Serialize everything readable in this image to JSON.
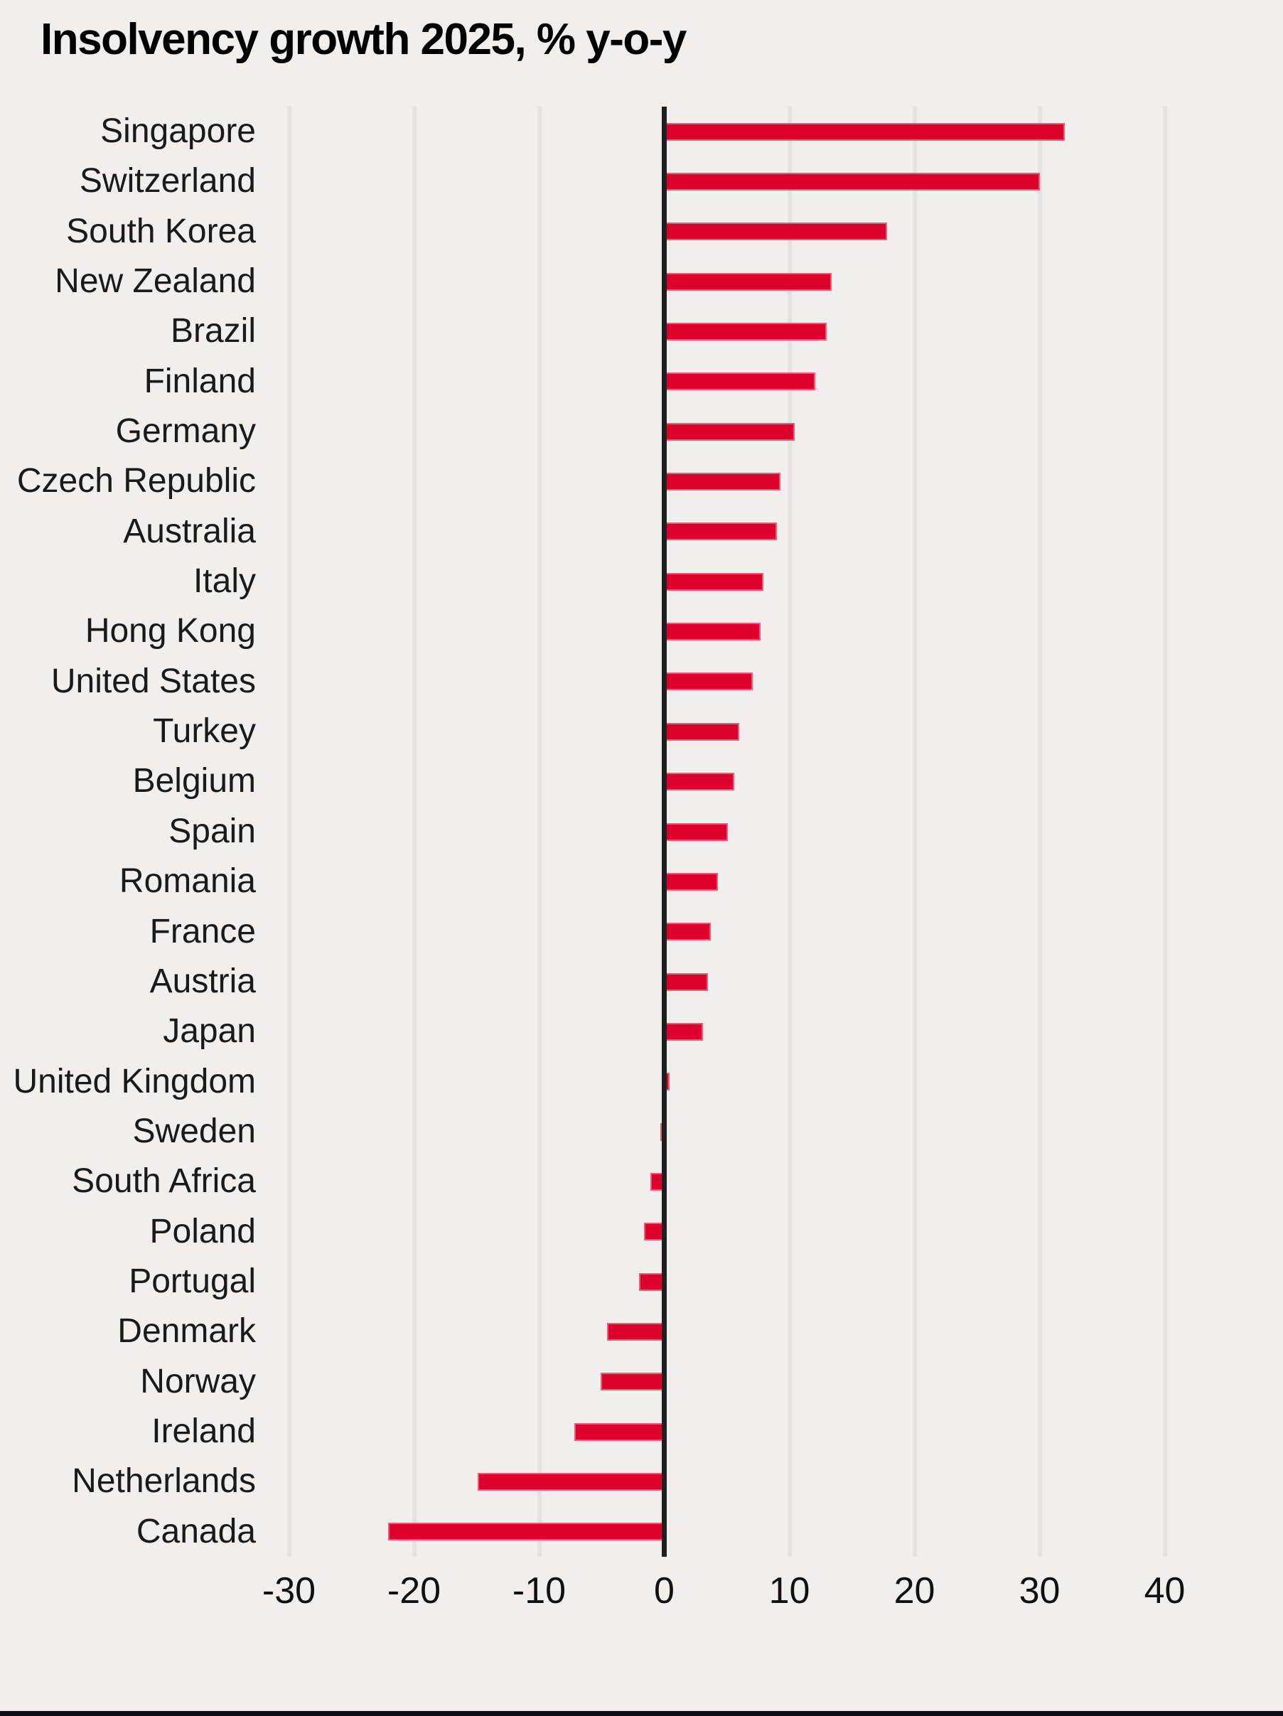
{
  "page": {
    "background_color": "#f1efed",
    "bottom_strip_color": "#0c0c0e"
  },
  "chart_data": {
    "type": "bar",
    "orientation": "horizontal",
    "title": "Insolvency growth 2025, % y-o-y",
    "xlabel": "",
    "ylabel": "",
    "xlim": [
      -30,
      40
    ],
    "x_ticks": [
      -30,
      -20,
      -10,
      0,
      10,
      20,
      30,
      40
    ],
    "grid": true,
    "legend": "none",
    "bar_color": "#dc002d",
    "zero_axis_color": "#1f1f1f",
    "gridline_color": "#e5e3e0",
    "categories": [
      "Singapore",
      "Switzerland",
      "South Korea",
      "New Zealand",
      "Brazil",
      "Finland",
      "Germany",
      "Czech Republic",
      "Australia",
      "Italy",
      "Hong Kong",
      "United States",
      "Turkey",
      "Belgium",
      "Spain",
      "Romania",
      "France",
      "Austria",
      "Japan",
      "United Kingdom",
      "Sweden",
      "South Africa",
      "Poland",
      "Portugal",
      "Denmark",
      "Norway",
      "Ireland",
      "Netherlands",
      "Canada"
    ],
    "values": [
      32.0,
      30.0,
      17.8,
      13.4,
      13.0,
      12.1,
      10.4,
      9.3,
      9.0,
      7.9,
      7.7,
      7.1,
      6.0,
      5.6,
      5.1,
      4.3,
      3.7,
      3.5,
      3.1,
      0.4,
      -0.3,
      -1.1,
      -1.6,
      -2.0,
      -4.6,
      -5.1,
      -7.2,
      -14.9,
      -22.1
    ]
  }
}
